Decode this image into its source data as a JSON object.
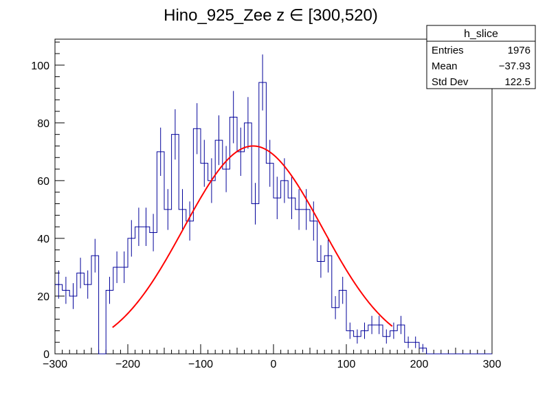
{
  "chart_data": {
    "type": "histogram",
    "title": "Hino_925_Zee z  ∈ [300,520)",
    "xlabel": "",
    "ylabel": "",
    "xlim": [
      -300,
      300
    ],
    "ylim": [
      0,
      109
    ],
    "x_ticks": [
      -300,
      -200,
      -100,
      0,
      100,
      200,
      300
    ],
    "y_ticks": [
      0,
      20,
      40,
      60,
      80,
      100
    ],
    "bin_width": 10,
    "bins": {
      "x_low": [
        -300,
        -290,
        -280,
        -270,
        -260,
        -250,
        -240,
        -230,
        -220,
        -210,
        -200,
        -190,
        -180,
        -170,
        -160,
        -150,
        -140,
        -130,
        -120,
        -110,
        -100,
        -90,
        -80,
        -70,
        -60,
        -50,
        -40,
        -30,
        -20,
        -10,
        0,
        10,
        20,
        30,
        40,
        50,
        60,
        70,
        80,
        90,
        100,
        110,
        120,
        130,
        140,
        150,
        160,
        170,
        180,
        190,
        200,
        210,
        220,
        230,
        240,
        250,
        260,
        270,
        280,
        290
      ],
      "counts": [
        24,
        22,
        20,
        28,
        24,
        34,
        null,
        22,
        30,
        30,
        40,
        44,
        44,
        42,
        70,
        50,
        76,
        50,
        46,
        78,
        66,
        60,
        74,
        64,
        82,
        70,
        80,
        52,
        94,
        66,
        54,
        60,
        54,
        50,
        50,
        46,
        32,
        34,
        16,
        22,
        8,
        6,
        8,
        10,
        10,
        6,
        8,
        10,
        4,
        4,
        2,
        null,
        null,
        null,
        null,
        null,
        null,
        null,
        null,
        null
      ]
    },
    "fit": {
      "name": "gaus",
      "color": "#ff0000",
      "amplitude": 72,
      "mean": -28,
      "sigma": 95,
      "x_range": [
        -221,
        163
      ]
    },
    "legend": {
      "title": "h_slice",
      "rows": [
        {
          "label": "Entries",
          "value": "1976"
        },
        {
          "label": "Mean",
          "value": "−37.93"
        },
        {
          "label": "Std Dev",
          "value": "122.5"
        }
      ]
    },
    "colors": {
      "histogram": "#000099",
      "fit": "#ff0000",
      "axes": "#000000"
    }
  }
}
